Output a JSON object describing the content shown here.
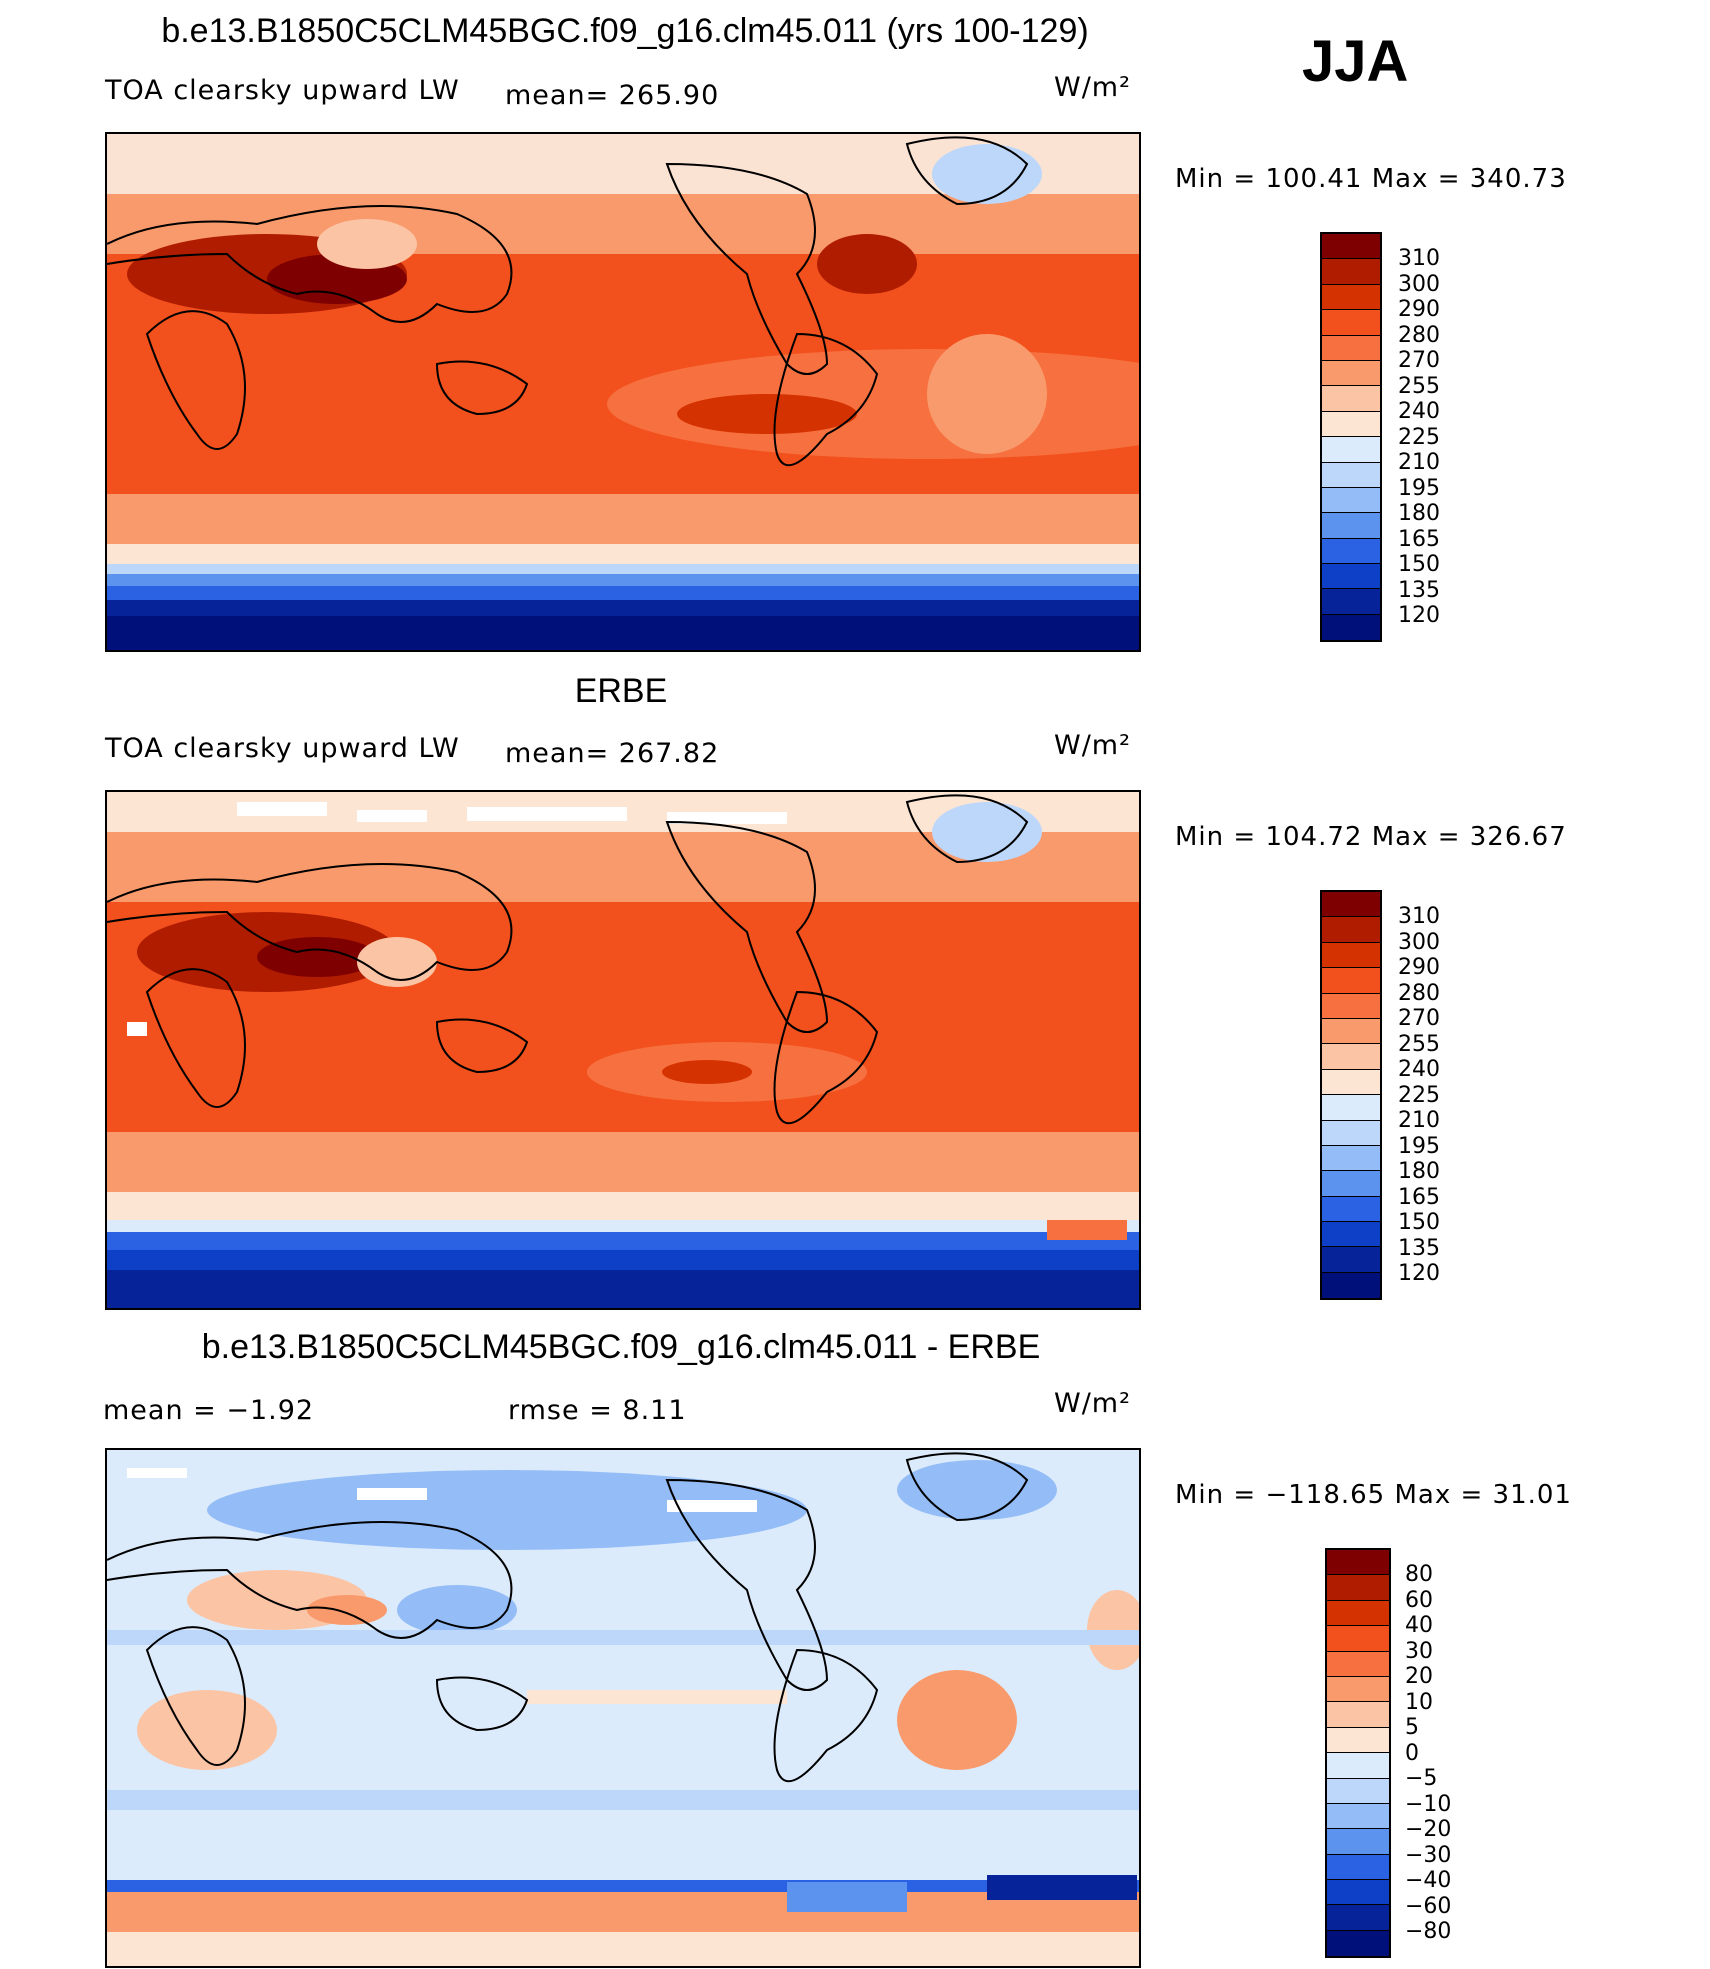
{
  "season": "JJA",
  "panels": [
    {
      "id": "model",
      "title": "b.e13.B1850C5CLM45BGC.f09_g16.clm45.011 (yrs 100-129)",
      "variable": "TOA clearsky upward LW",
      "stat_text": "mean= 265.90",
      "units": "W/m²",
      "minmax": "Min  =  100.41  Max  =  340.73",
      "colorbar_labels": [
        "310",
        "300",
        "290",
        "280",
        "270",
        "255",
        "240",
        "225",
        "210",
        "195",
        "180",
        "165",
        "150",
        "135",
        "120"
      ]
    },
    {
      "id": "obs",
      "title": "ERBE",
      "variable": "TOA clearsky upward LW",
      "stat_text": "mean= 267.82",
      "units": "W/m²",
      "minmax": "Min  =  104.72  Max  =  326.67",
      "colorbar_labels": [
        "310",
        "300",
        "290",
        "280",
        "270",
        "255",
        "240",
        "225",
        "210",
        "195",
        "180",
        "165",
        "150",
        "135",
        "120"
      ]
    },
    {
      "id": "diff",
      "title": "b.e13.B1850C5CLM45BGC.f09_g16.clm45.011 - ERBE",
      "mean_text": "mean  =    −1.92",
      "rmse_text": "rmse  =     8.11",
      "units": "W/m²",
      "minmax": "Min  =  −118.65  Max  =    31.01",
      "colorbar_labels": [
        "80",
        "60",
        "40",
        "30",
        "20",
        "10",
        "5",
        "0",
        "−5",
        "−10",
        "−20",
        "−30",
        "−40",
        "−60",
        "−80"
      ]
    }
  ],
  "colors": {
    "abs_scale": [
      "#7f0000",
      "#b01c00",
      "#d43200",
      "#f2501c",
      "#f7703f",
      "#f99a6c",
      "#fbc4a4",
      "#fde5d3",
      "#dcebfb",
      "#bcd7fa",
      "#94bdf7",
      "#5b93ef",
      "#2a62e3",
      "#0d3fc7",
      "#06239a",
      "#00107a"
    ],
    "diff_scale": [
      "#7f0000",
      "#b01c00",
      "#d43200",
      "#f2501c",
      "#f7703f",
      "#f99a6c",
      "#fbc4a4",
      "#fde5d3",
      "#dcebfb",
      "#bcd7fa",
      "#94bdf7",
      "#5b93ef",
      "#2a62e3",
      "#0d3fc7",
      "#06239a",
      "#00107a"
    ]
  }
}
